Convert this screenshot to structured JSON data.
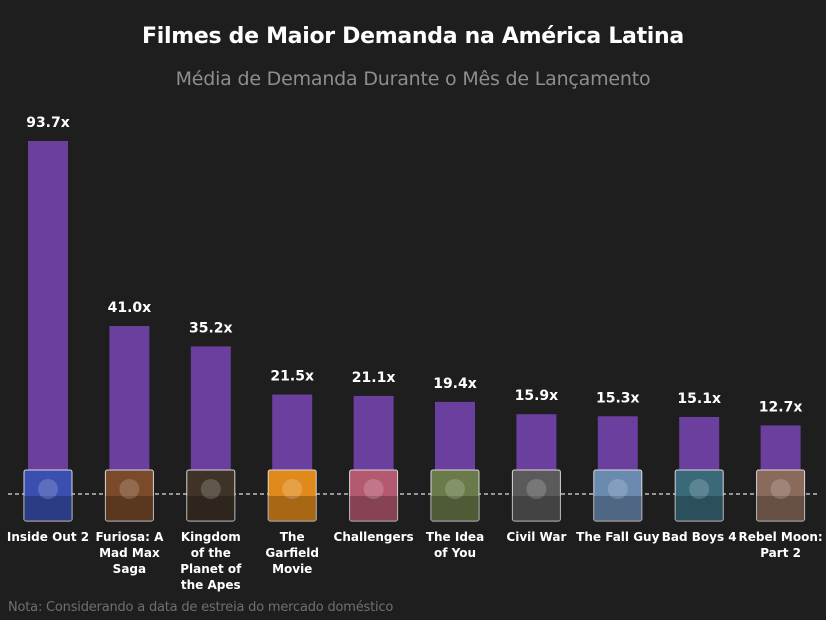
{
  "chart_data": {
    "type": "bar",
    "title": "Filmes de Maior Demanda na América Latina",
    "subtitle": "Média de Demanda Durante o Mês de Lançamento",
    "categories": [
      "Inside Out 2",
      "Furiosa: A Mad Max Saga",
      "Kingdom of the Planet of the Apes",
      "The Garfield Movie",
      "Challengers",
      "The Idea of You",
      "Civil War",
      "The Fall Guy",
      "Bad Boys 4",
      "Rebel Moon: Part 2"
    ],
    "category_lines": [
      [
        "Inside Out 2"
      ],
      [
        "Furiosa: A",
        "Mad Max",
        "Saga"
      ],
      [
        "Kingdom",
        "of the",
        "Planet of",
        "the Apes"
      ],
      [
        "The",
        "Garfield",
        "Movie"
      ],
      [
        "Challengers"
      ],
      [
        "The Idea",
        "of You"
      ],
      [
        "Civil War"
      ],
      [
        "The Fall Guy"
      ],
      [
        "Bad Boys 4"
      ],
      [
        "Rebel Moon:",
        "Part 2"
      ]
    ],
    "values": [
      93.7,
      41.0,
      35.2,
      21.5,
      21.1,
      19.4,
      15.9,
      15.3,
      15.1,
      12.7
    ],
    "value_labels": [
      "93.7x",
      "41.0x",
      "35.2x",
      "21.5x",
      "21.1x",
      "19.4x",
      "15.9x",
      "15.3x",
      "15.1x",
      "12.7x"
    ],
    "ylim": [
      0,
      93.7
    ],
    "xlabel": "",
    "ylabel": "",
    "grid": false,
    "bar_color": "#6a3f9e",
    "poster_colors": [
      "#3a4fb0",
      "#7a4a2a",
      "#3e3326",
      "#e08a1c",
      "#b45a70",
      "#6a7a4a",
      "#5a5a5a",
      "#6a8ab0",
      "#3a6a7a",
      "#8a6a5a"
    ]
  },
  "note": "Nota: Considerando a data de estreia do mercado doméstico"
}
